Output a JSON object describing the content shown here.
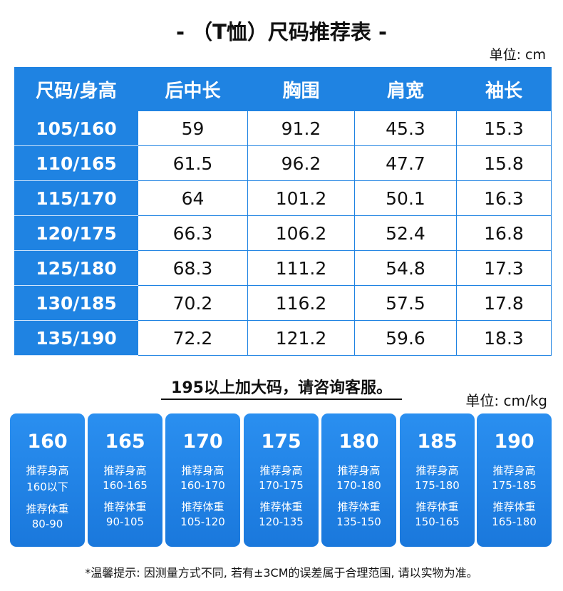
{
  "title": "- （T恤）尺码推荐表 -",
  "unit": "单位: cm",
  "table": {
    "header": [
      "尺码/身高",
      "后中长",
      "胸围",
      "肩宽",
      "袖长"
    ],
    "rows": [
      [
        "105/160",
        "59",
        "91.2",
        "45.3",
        "15.3"
      ],
      [
        "110/165",
        "61.5",
        "96.2",
        "47.7",
        "15.8"
      ],
      [
        "115/170",
        "64",
        "101.2",
        "50.1",
        "16.3"
      ],
      [
        "120/175",
        "66.3",
        "106.2",
        "52.4",
        "16.8"
      ],
      [
        "125/180",
        "68.3",
        "111.2",
        "54.8",
        "17.3"
      ],
      [
        "130/185",
        "70.2",
        "116.2",
        "57.5",
        "17.8"
      ],
      [
        "135/190",
        "72.2",
        "121.2",
        "59.6",
        "18.3"
      ]
    ]
  },
  "notice": "195以上加大码，请咨询客服。",
  "unit2": "单位: cm/kg",
  "cards": [
    {
      "size": "160",
      "height_label": "推荐身高",
      "height": "160以下",
      "weight_label": "推荐体重",
      "weight": "80-90"
    },
    {
      "size": "165",
      "height_label": "推荐身高",
      "height": "160-165",
      "weight_label": "推荐体重",
      "weight": "90-105"
    },
    {
      "size": "170",
      "height_label": "推荐身高",
      "height": "160-170",
      "weight_label": "推荐体重",
      "weight": "105-120"
    },
    {
      "size": "175",
      "height_label": "推荐身高",
      "height": "170-175",
      "weight_label": "推荐体重",
      "weight": "120-135"
    },
    {
      "size": "180",
      "height_label": "推荐身高",
      "height": "170-180",
      "weight_label": "推荐体重",
      "weight": "135-150"
    },
    {
      "size": "185",
      "height_label": "推荐身高",
      "height": "175-180",
      "weight_label": "推荐体重",
      "weight": "150-165"
    },
    {
      "size": "190",
      "height_label": "推荐身高",
      "height": "175-185",
      "weight_label": "推荐体重",
      "weight": "165-180"
    }
  ],
  "footer": "*温馨提示: 因测量方式不同, 若有±3CM的误差属于合理范围, 请以实物为准。"
}
